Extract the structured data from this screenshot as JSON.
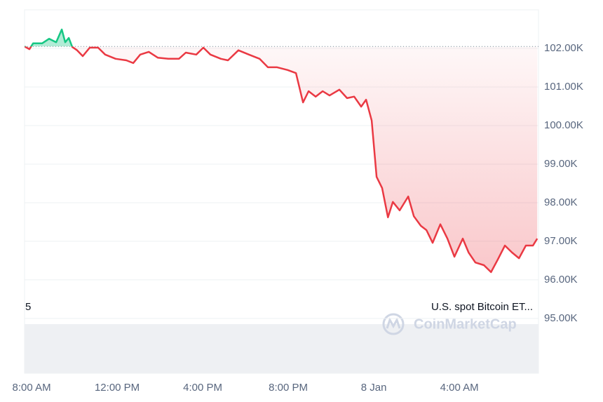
{
  "chart_data": {
    "type": "line",
    "x": [
      -0.33,
      -0.1,
      0.07,
      0.49,
      0.82,
      1.15,
      1.41,
      1.57,
      1.74,
      1.9,
      2.13,
      2.39,
      2.72,
      3.11,
      3.44,
      3.93,
      4.43,
      4.75,
      5.08,
      5.48,
      5.9,
      6.39,
      6.89,
      7.21,
      7.7,
      8.03,
      8.36,
      8.85,
      9.18,
      9.67,
      10.16,
      10.66,
      11.05,
      11.48,
      11.97,
      12.36,
      12.69,
      12.95,
      13.28,
      13.61,
      13.93,
      14.39,
      14.75,
      15.08,
      15.41,
      15.64,
      15.9,
      16.13,
      16.39,
      16.66,
      16.89,
      17.21,
      17.61,
      17.87,
      18.2,
      18.46,
      18.75,
      19.11,
      19.44,
      19.77,
      20.16,
      20.43,
      20.75,
      21.15,
      21.48,
      21.8,
      22.13,
      22.46,
      22.79,
      23.11,
      23.44,
      23.64
    ],
    "values": [
      102050,
      101980,
      102130,
      102130,
      102250,
      102160,
      102490,
      102160,
      102270,
      102040,
      101950,
      101800,
      102020,
      102020,
      101840,
      101730,
      101690,
      101620,
      101840,
      101910,
      101760,
      101730,
      101730,
      101890,
      101840,
      102020,
      101840,
      101730,
      101690,
      101950,
      101840,
      101730,
      101510,
      101510,
      101440,
      101360,
      100600,
      100890,
      100750,
      100890,
      100780,
      100930,
      100710,
      100750,
      100490,
      100670,
      100130,
      98670,
      98380,
      97620,
      98020,
      97800,
      98160,
      97650,
      97400,
      97290,
      96960,
      97440,
      97070,
      96600,
      97070,
      96710,
      96450,
      96380,
      96200,
      96530,
      96890,
      96710,
      96560,
      96890,
      96890,
      97070
    ],
    "color": "#ea3943",
    "up_color": "#16c784",
    "baseline": 102050,
    "xlim": [
      -0.33,
      23.7
    ],
    "xticks": [
      {
        "value": 0,
        "label": "8:00 AM"
      },
      {
        "value": 4,
        "label": "12:00 PM"
      },
      {
        "value": 8,
        "label": "4:00 PM"
      },
      {
        "value": 12,
        "label": "8:00 PM"
      },
      {
        "value": 16,
        "label": "8 Jan"
      },
      {
        "value": 20,
        "label": "4:00 AM"
      }
    ],
    "ylim": [
      93580,
      103000
    ],
    "yticks": [
      {
        "value": 102000,
        "label": "102.00K"
      },
      {
        "value": 101000,
        "label": "101.00K"
      },
      {
        "value": 100000,
        "label": "100.00K"
      },
      {
        "value": 99000,
        "label": "99.00K"
      },
      {
        "value": 98000,
        "label": "98.00K"
      },
      {
        "value": 97000,
        "label": "97.00K"
      },
      {
        "value": 96000,
        "label": "96.00K"
      },
      {
        "value": 95000,
        "label": "95.00K"
      }
    ],
    "grid": true,
    "annotations": [
      "5",
      "U.S. spot Bitcoin ET..."
    ],
    "watermark": "CoinMarketCap"
  }
}
